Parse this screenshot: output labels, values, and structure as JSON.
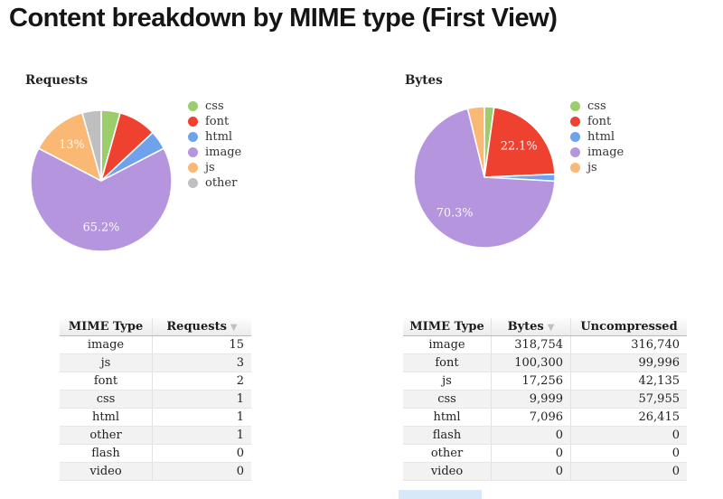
{
  "page": {
    "title": "Content breakdown by MIME type (First View)"
  },
  "colors": {
    "css": "#9bce6a",
    "font": "#ee4130",
    "html": "#6fa2ec",
    "image": "#b596de",
    "js": "#f9b873",
    "other": "#bfbfbf"
  },
  "chart_data": [
    {
      "type": "pie",
      "title": "Requests",
      "legend_position": "right",
      "legend": [
        "css",
        "font",
        "html",
        "image",
        "js",
        "other"
      ],
      "slices": [
        {
          "label": "css",
          "value": 1,
          "pct_label": ""
        },
        {
          "label": "font",
          "value": 2,
          "pct_label": ""
        },
        {
          "label": "html",
          "value": 1,
          "pct_label": ""
        },
        {
          "label": "image",
          "value": 15,
          "pct_label": "65.2%"
        },
        {
          "label": "js",
          "value": 3,
          "pct_label": "13%"
        },
        {
          "label": "other",
          "value": 1,
          "pct_label": ""
        }
      ]
    },
    {
      "type": "pie",
      "title": "Bytes",
      "legend_position": "right",
      "legend": [
        "css",
        "font",
        "html",
        "image",
        "js"
      ],
      "slices": [
        {
          "label": "css",
          "value": 9999,
          "pct_label": ""
        },
        {
          "label": "font",
          "value": 100300,
          "pct_label": "22.1%"
        },
        {
          "label": "html",
          "value": 7096,
          "pct_label": ""
        },
        {
          "label": "image",
          "value": 318754,
          "pct_label": "70.3%"
        },
        {
          "label": "js",
          "value": 17256,
          "pct_label": ""
        }
      ]
    }
  ],
  "tables": [
    {
      "columns": [
        {
          "label": "MIME Type",
          "sorted": false
        },
        {
          "label": "Requests",
          "sorted": true
        }
      ],
      "rows": [
        [
          "image",
          "15"
        ],
        [
          "js",
          "3"
        ],
        [
          "font",
          "2"
        ],
        [
          "css",
          "1"
        ],
        [
          "html",
          "1"
        ],
        [
          "other",
          "1"
        ],
        [
          "flash",
          "0"
        ],
        [
          "video",
          "0"
        ]
      ]
    },
    {
      "columns": [
        {
          "label": "MIME Type",
          "sorted": false
        },
        {
          "label": "Bytes",
          "sorted": true
        },
        {
          "label": "Uncompressed",
          "sorted": false
        }
      ],
      "rows": [
        [
          "image",
          "318,754",
          "316,740"
        ],
        [
          "font",
          "100,300",
          "99,996"
        ],
        [
          "js",
          "17,256",
          "42,135"
        ],
        [
          "css",
          "9,999",
          "57,955"
        ],
        [
          "html",
          "7,096",
          "26,415"
        ],
        [
          "flash",
          "0",
          "0"
        ],
        [
          "other",
          "0",
          "0"
        ],
        [
          "video",
          "0",
          "0"
        ]
      ]
    }
  ]
}
